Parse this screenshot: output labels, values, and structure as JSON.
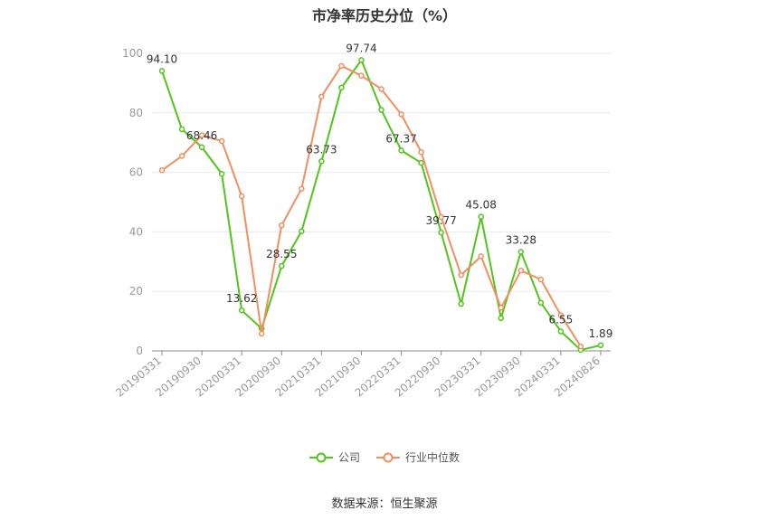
{
  "chart_data": {
    "type": "line",
    "title": "市净率历史分位（%）",
    "ylim": [
      0,
      100
    ],
    "y_ticks": [
      "0",
      "20",
      "40",
      "60",
      "80",
      "100"
    ],
    "grid": true,
    "x": [
      "20190331",
      "",
      "20190930",
      "",
      "20200331",
      "",
      "20200930",
      "",
      "20210331",
      "",
      "20210930",
      "",
      "20220331",
      "",
      "20220930",
      "",
      "20230331",
      "",
      "20230930",
      "",
      "20240331",
      "",
      "20240826"
    ],
    "x_tick_labels": [
      "20190331",
      "20190930",
      "20200331",
      "20200930",
      "20210331",
      "20210930",
      "20220331",
      "20220930",
      "20230331",
      "20230930",
      "20240331",
      "20240826"
    ],
    "series": [
      {
        "name": "公司",
        "color": "#52c41a",
        "values": [
          94.1,
          74.5,
          68.46,
          59.5,
          13.62,
          7.5,
          28.55,
          40.2,
          63.73,
          88.5,
          97.74,
          81.0,
          67.37,
          63.2,
          39.77,
          15.8,
          45.08,
          11.0,
          33.28,
          16.2,
          6.55,
          0.3,
          1.89
        ],
        "labels": [
          "94.10",
          null,
          "68.46",
          null,
          "13.62",
          null,
          "28.55",
          null,
          "63.73",
          null,
          "97.74",
          null,
          "67.37",
          null,
          "39.77",
          null,
          "45.08",
          null,
          "33.28",
          null,
          "6.55",
          null,
          "1.89"
        ]
      },
      {
        "name": "行业中位数",
        "color": "#f28e62",
        "values": [
          60.7,
          65.5,
          72.5,
          70.5,
          52.0,
          5.8,
          42.2,
          54.5,
          85.5,
          95.8,
          92.5,
          88.0,
          79.5,
          66.8,
          45.0,
          25.5,
          31.8,
          14.5,
          27.0,
          24.0,
          12.0,
          1.5,
          null
        ]
      }
    ],
    "legend_position": "bottom"
  },
  "source_note": "数据来源：恒生聚源"
}
